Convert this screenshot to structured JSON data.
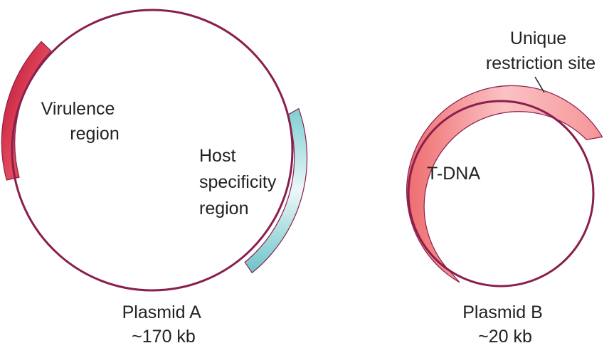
{
  "plasmid_a": {
    "name": "Plasmid A",
    "size": "~170 kb",
    "virulence_label": [
      "Virulence",
      "region"
    ],
    "host_label": [
      "Host",
      "specificity",
      "region"
    ]
  },
  "plasmid_b": {
    "name": "Plasmid B",
    "size": "~20 kb",
    "tdna_label": "T-DNA",
    "site_label": [
      "Unique",
      "restriction site"
    ]
  },
  "colors": {
    "backbone": "#8a1f4e",
    "virulence": "#c8243f",
    "host_specificity": "#7ecfd3",
    "t_dna": "#f0797a"
  }
}
